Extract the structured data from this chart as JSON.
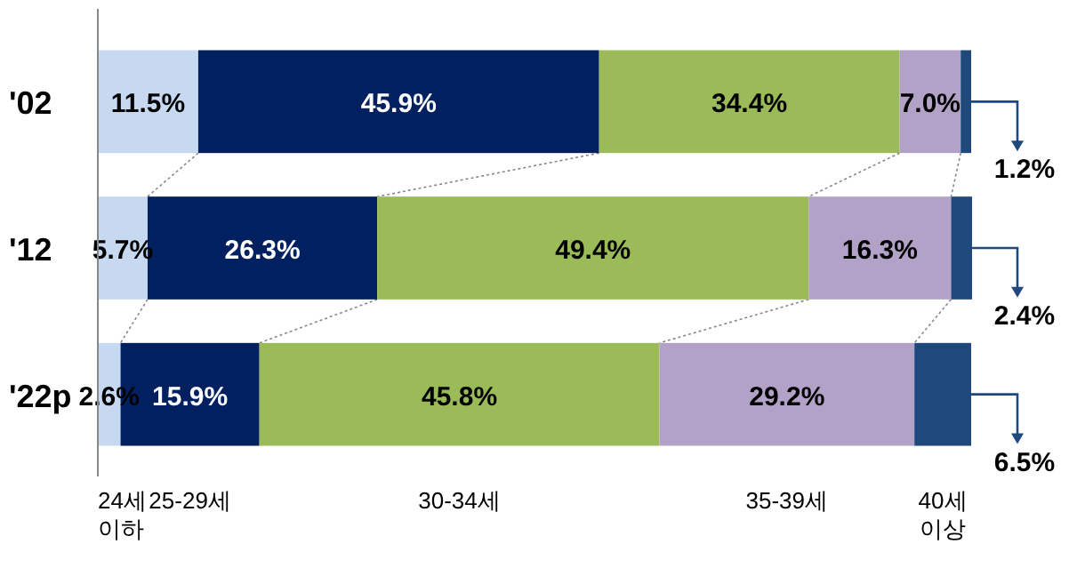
{
  "chart_data": {
    "type": "bar",
    "orientation": "horizontal",
    "stacked": true,
    "xlim": [
      0,
      100
    ],
    "tick_labels": "y",
    "legend": "bottom",
    "categories": [
      "'02",
      "'12",
      "'22p"
    ],
    "series": [
      {
        "name": "24세 이하",
        "color": "#c6d9f1",
        "values": [
          11.5,
          5.7,
          2.6
        ],
        "value_labels": [
          "11.5%",
          "5.7%",
          "2.6%"
        ]
      },
      {
        "name": "25-29세",
        "color": "#002060",
        "values": [
          45.9,
          26.3,
          15.9
        ],
        "value_labels": [
          "45.9%",
          "26.3%",
          "15.9%"
        ]
      },
      {
        "name": "30-34세",
        "color": "#9bbb59",
        "values": [
          34.4,
          49.4,
          45.8
        ],
        "value_labels": [
          "34.4%",
          "49.4%",
          "45.8%"
        ]
      },
      {
        "name": "35-39세",
        "color": "#b3a2c7",
        "values": [
          7.0,
          16.3,
          29.2
        ],
        "value_labels": [
          "7.0%",
          "16.3%",
          "29.2%"
        ]
      },
      {
        "name": "40세 이상",
        "color": "#1f497d",
        "values": [
          1.2,
          2.4,
          6.5
        ],
        "value_labels": [
          "1.2%",
          "2.4%",
          "6.5%"
        ]
      }
    ]
  }
}
